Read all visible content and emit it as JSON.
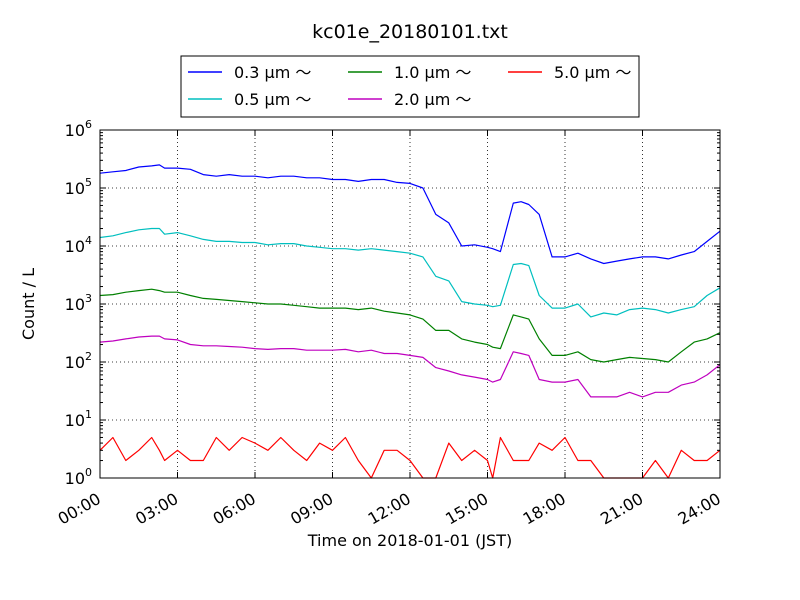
{
  "chart_data": {
    "type": "line",
    "title": "kc01e_20180101.txt",
    "xlabel": "Time on 2018-01-01 (JST)",
    "ylabel": "Count / L",
    "yscale": "log",
    "ylim": [
      1,
      1000000
    ],
    "xlim": [
      "00:00",
      "24:00"
    ],
    "x_ticks": [
      "00:00",
      "03:00",
      "06:00",
      "09:00",
      "12:00",
      "15:00",
      "18:00",
      "21:00",
      "24:00"
    ],
    "y_ticks": [
      {
        "base": "10",
        "exp": "0",
        "value": 1
      },
      {
        "base": "10",
        "exp": "1",
        "value": 10
      },
      {
        "base": "10",
        "exp": "2",
        "value": 100
      },
      {
        "base": "10",
        "exp": "3",
        "value": 1000
      },
      {
        "base": "10",
        "exp": "4",
        "value": 10000
      },
      {
        "base": "10",
        "exp": "5",
        "value": 100000
      },
      {
        "base": "10",
        "exp": "6",
        "value": 1000000
      }
    ],
    "grid": true,
    "legend_position": "top, above plot",
    "x_hours": [
      0,
      0.5,
      1,
      1.5,
      2,
      2.3,
      2.5,
      3,
      3.5,
      4,
      4.5,
      5,
      5.5,
      6,
      6.5,
      7,
      7.5,
      8,
      8.5,
      9,
      9.5,
      10,
      10.5,
      11,
      11.5,
      12,
      12.5,
      13,
      13.5,
      14,
      14.5,
      15,
      15.2,
      15.5,
      16,
      16.3,
      16.6,
      17,
      17.5,
      18,
      18.5,
      19,
      19.5,
      20,
      20.5,
      21,
      21.5,
      22,
      22.5,
      23,
      23.5,
      24
    ],
    "series": [
      {
        "name": "0.3 μm ～",
        "color": "#0000ff",
        "values": [
          180000,
          190000,
          200000,
          230000,
          240000,
          250000,
          220000,
          220000,
          210000,
          170000,
          160000,
          170000,
          160000,
          160000,
          150000,
          160000,
          160000,
          150000,
          150000,
          140000,
          140000,
          130000,
          140000,
          140000,
          125000,
          120000,
          100000,
          35000,
          25000,
          10000,
          10500,
          9500,
          9000,
          8000,
          55000,
          58000,
          52000,
          35000,
          6500,
          6500,
          7500,
          6000,
          5000,
          5500,
          6000,
          6500,
          6500,
          6000,
          7000,
          8000,
          12000,
          18000
        ]
      },
      {
        "name": "0.5 μm ～",
        "color": "#00bfbf",
        "values": [
          14000,
          15000,
          17000,
          19000,
          20000,
          20000,
          16000,
          17000,
          15000,
          13000,
          12000,
          12000,
          11500,
          11500,
          10500,
          11000,
          11000,
          10000,
          9500,
          9000,
          9000,
          8500,
          9000,
          8500,
          8000,
          7500,
          6500,
          3000,
          2500,
          1100,
          1000,
          950,
          900,
          950,
          4800,
          5000,
          4600,
          1400,
          850,
          850,
          1000,
          600,
          700,
          650,
          800,
          850,
          800,
          700,
          800,
          900,
          1400,
          1900
        ]
      },
      {
        "name": "1.0 μm ～",
        "color": "#008000",
        "values": [
          1400,
          1450,
          1600,
          1700,
          1800,
          1700,
          1600,
          1600,
          1400,
          1250,
          1200,
          1150,
          1100,
          1050,
          1000,
          1000,
          950,
          900,
          850,
          850,
          850,
          800,
          850,
          750,
          700,
          650,
          550,
          350,
          350,
          250,
          220,
          200,
          180,
          170,
          650,
          600,
          550,
          250,
          130,
          130,
          150,
          110,
          100,
          110,
          120,
          115,
          110,
          100,
          150,
          220,
          250,
          320
        ]
      },
      {
        "name": "2.0 μm ～",
        "color": "#bf00bf",
        "values": [
          220,
          230,
          250,
          270,
          280,
          280,
          250,
          240,
          200,
          190,
          190,
          185,
          180,
          170,
          165,
          170,
          170,
          160,
          160,
          160,
          165,
          150,
          160,
          140,
          140,
          130,
          120,
          80,
          70,
          60,
          55,
          50,
          45,
          50,
          150,
          140,
          130,
          50,
          45,
          45,
          50,
          25,
          25,
          25,
          30,
          25,
          30,
          30,
          40,
          45,
          60,
          90
        ]
      },
      {
        "name": "5.0 μm ～",
        "color": "#ff0000",
        "values": [
          3,
          5,
          2,
          3,
          5,
          3,
          2,
          3,
          2,
          2,
          5,
          3,
          5,
          4,
          3,
          5,
          3,
          2,
          4,
          3,
          5,
          2,
          1,
          3,
          3,
          2,
          1,
          1,
          4,
          2,
          3,
          2,
          1,
          5,
          2,
          2,
          2,
          4,
          3,
          5,
          2,
          2,
          1,
          1,
          1,
          1,
          2,
          1,
          3,
          2,
          2,
          3
        ]
      }
    ]
  }
}
